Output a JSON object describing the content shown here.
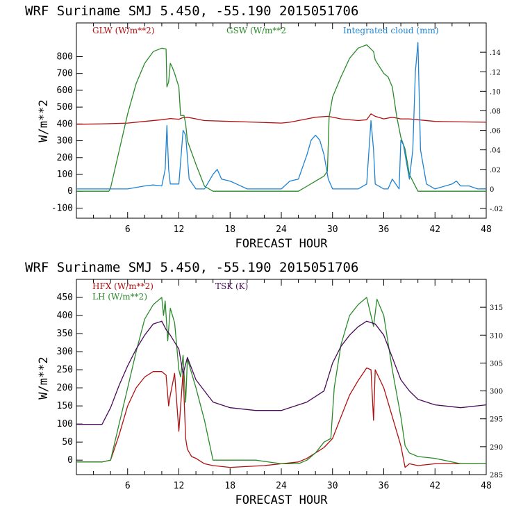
{
  "chart_data": [
    {
      "type": "line",
      "title": "WRF   Suriname SMJ   5.450, -55.190  2015051706",
      "xlabel": "FORECAST HOUR",
      "ylabel": "W/m**2",
      "xlim": [
        0,
        48
      ],
      "ylim": [
        -160,
        1000
      ],
      "y2lim": [
        -0.03,
        0.17
      ],
      "xticks": [
        "6",
        "12",
        "18",
        "24",
        "30",
        "36",
        "42",
        "48"
      ],
      "yticks": [
        "-100",
        "0",
        "100",
        "200",
        "300",
        "400",
        "500",
        "600",
        "700",
        "800"
      ],
      "y2ticks": [
        "-.02",
        "0",
        ".02",
        ".04",
        ".06",
        ".08",
        ".10",
        ".12",
        ".14"
      ],
      "series": [
        {
          "name": "GLW (W/m**2)",
          "color": "#b01010",
          "axis": "left",
          "x": [
            0,
            3,
            6,
            8,
            10,
            11,
            12,
            12.5,
            13,
            14,
            15,
            18,
            21,
            24,
            25,
            26,
            27,
            28,
            29.5,
            31,
            33,
            34,
            34.5,
            35,
            36,
            37,
            38,
            39,
            40,
            42,
            45,
            48
          ],
          "values": [
            398,
            400,
            405,
            415,
            425,
            432,
            428,
            438,
            440,
            430,
            420,
            415,
            410,
            405,
            410,
            420,
            430,
            440,
            445,
            430,
            420,
            425,
            460,
            445,
            430,
            440,
            430,
            430,
            425,
            415,
            412,
            410
          ]
        },
        {
          "name": "GSW (W/m**2",
          "color": "#2a8a2a",
          "axis": "left",
          "x": [
            0,
            3.8,
            4,
            5,
            6,
            7,
            8,
            9,
            10,
            10.5,
            10.6,
            10.8,
            11,
            11.2,
            11.5,
            12,
            12.2,
            12.6,
            12.8,
            13,
            14,
            15,
            16,
            17,
            18,
            20,
            24,
            26,
            27,
            28,
            29,
            29.4,
            29.6,
            30,
            31,
            32,
            33,
            34,
            34.8,
            35,
            36,
            36.5,
            37,
            37.5,
            38,
            38.5,
            39,
            39.5,
            40,
            42,
            44,
            48
          ],
          "values": [
            0,
            0,
            20,
            240,
            460,
            640,
            760,
            830,
            850,
            845,
            620,
            650,
            760,
            740,
            700,
            620,
            450,
            450,
            400,
            300,
            160,
            30,
            0,
            0,
            0,
            0,
            0,
            0,
            30,
            60,
            90,
            120,
            440,
            560,
            680,
            790,
            850,
            870,
            830,
            780,
            700,
            680,
            620,
            450,
            320,
            250,
            100,
            50,
            0,
            0,
            0,
            0
          ]
        },
        {
          "name": "Integrated cloud (mm)",
          "color": "#1e82d2",
          "axis": "right",
          "x": [
            0,
            6,
            8,
            9,
            10,
            10.4,
            10.6,
            10.8,
            11,
            12,
            12.5,
            12.8,
            13.2,
            14,
            15,
            16,
            16.5,
            17,
            18,
            19,
            20,
            21,
            24,
            25,
            26,
            27,
            27.5,
            28,
            28.5,
            29,
            29.5,
            30,
            33,
            34,
            34.5,
            34.8,
            35,
            36,
            36.5,
            37,
            37.8,
            38,
            38.3,
            39,
            39.4,
            39.7,
            40,
            40.3,
            41,
            42,
            44,
            44.5,
            45,
            46,
            47,
            48
          ],
          "values": [
            0,
            0,
            0.003,
            0.004,
            0.003,
            0.02,
            0.065,
            0.02,
            0.005,
            0.005,
            0.06,
            0.055,
            0.01,
            0,
            0,
            0.015,
            0.02,
            0.01,
            0.008,
            0.004,
            0,
            0,
            0,
            0.008,
            0.01,
            0.035,
            0.05,
            0.055,
            0.05,
            0.035,
            0.01,
            0,
            0,
            0.005,
            0.07,
            0.04,
            0.005,
            0,
            0,
            0.01,
            0,
            0.05,
            0.045,
            0.01,
            0.04,
            0.12,
            0.15,
            0.04,
            0.005,
            0,
            0.005,
            0.008,
            0.003,
            0.003,
            0,
            0
          ]
        }
      ]
    },
    {
      "type": "line",
      "title": "WRF   Suriname SMJ   5.450, -55.190  2015051706",
      "xlabel": "FORECAST HOUR",
      "ylabel": "W/m**2",
      "xlim": [
        0,
        48
      ],
      "ylim": [
        -40,
        500
      ],
      "y2lim": [
        285,
        320
      ],
      "xticks": [
        "6",
        "12",
        "18",
        "24",
        "30",
        "36",
        "42",
        "48"
      ],
      "yticks": [
        "0",
        "50",
        "100",
        "150",
        "200",
        "250",
        "300",
        "350",
        "400",
        "450"
      ],
      "y2ticks": [
        "285",
        "290",
        "295",
        "300",
        "305",
        "310",
        "315"
      ],
      "series": [
        {
          "name": "HFX (W/m**2)",
          "color": "#b01010",
          "axis": "left",
          "x": [
            0,
            3,
            4,
            5,
            6,
            7,
            8,
            9,
            10,
            10.5,
            10.8,
            11,
            11.5,
            12,
            12.5,
            12.8,
            13,
            13.5,
            14,
            15,
            16,
            18,
            22,
            24,
            26,
            27,
            28,
            29,
            30,
            31,
            32,
            33,
            34,
            34.5,
            34.8,
            35,
            36,
            37,
            38,
            38.5,
            39,
            40,
            42,
            45,
            48
          ],
          "values": [
            -5,
            -5,
            0,
            70,
            150,
            200,
            230,
            245,
            245,
            235,
            150,
            180,
            240,
            80,
            245,
            60,
            30,
            10,
            5,
            -10,
            -15,
            -20,
            -15,
            -10,
            -5,
            5,
            20,
            35,
            60,
            120,
            180,
            220,
            255,
            250,
            110,
            250,
            200,
            120,
            40,
            -20,
            -10,
            -15,
            -10,
            -10,
            -10
          ]
        },
        {
          "name": "LH  (W/m**2)",
          "color": "#2a8a2a",
          "axis": "left",
          "x": [
            0,
            3,
            4,
            5,
            6,
            7,
            8,
            9,
            10,
            10.2,
            10.4,
            10.7,
            11,
            11.5,
            12,
            12.2,
            12.5,
            12.8,
            13,
            14,
            15,
            16,
            18,
            21,
            24,
            26,
            27,
            28,
            29,
            29.8,
            30.2,
            31,
            32,
            33,
            34,
            34.8,
            35.2,
            36,
            37,
            38,
            38.5,
            39,
            40,
            42,
            45,
            48
          ],
          "values": [
            -5,
            -5,
            0,
            100,
            200,
            300,
            390,
            430,
            450,
            400,
            440,
            330,
            420,
            380,
            250,
            230,
            290,
            160,
            280,
            200,
            110,
            0,
            0,
            0,
            -10,
            -10,
            0,
            20,
            50,
            60,
            200,
            320,
            400,
            430,
            450,
            370,
            445,
            400,
            250,
            120,
            40,
            20,
            10,
            5,
            -10,
            -10
          ]
        },
        {
          "name": "TSK (K)",
          "color": "#4a0a5a",
          "axis": "right",
          "x": [
            0,
            3,
            4,
            5,
            6,
            7,
            8,
            9,
            10,
            10.5,
            11,
            12,
            12.5,
            13,
            14,
            15,
            16,
            18,
            21,
            24,
            27,
            29,
            30,
            31,
            32,
            33,
            34,
            35,
            36,
            37,
            38,
            39,
            40,
            42,
            45,
            48
          ],
          "values": [
            294,
            294,
            297,
            301,
            304.5,
            307.5,
            310,
            312,
            312.5,
            311,
            310,
            307.5,
            303,
            306,
            302,
            300,
            298,
            297,
            296.5,
            296.5,
            298,
            300,
            305,
            308,
            310,
            311.5,
            312.5,
            312,
            310,
            306,
            302,
            300,
            298.5,
            297.5,
            297,
            297.5
          ]
        }
      ]
    }
  ]
}
